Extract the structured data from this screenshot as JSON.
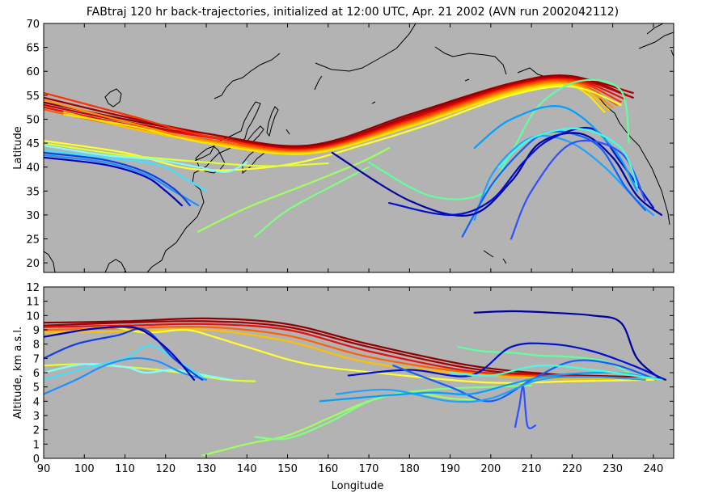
{
  "chart_data": [
    {
      "type": "line",
      "title": "FABtraj 120 hr back-trajectories, initialized at 12:00 UTC, Apr. 21 2002 (AVN run 2002042112)",
      "xlabel": "",
      "ylabel": "Latitude",
      "xlim": [
        90,
        245
      ],
      "ylim": [
        18,
        70
      ],
      "yticks": [
        "20",
        "25",
        "30",
        "35",
        "40",
        "45",
        "50",
        "55",
        "60",
        "65",
        "70"
      ],
      "background": "#b3b3b3",
      "series": [
        {
          "color": "#8b0000",
          "x": [
            90,
            110,
            130,
            155,
            180,
            205,
            220,
            235
          ],
          "y": [
            53.5,
            50,
            47,
            44.5,
            51,
            57.5,
            59,
            54.5
          ]
        },
        {
          "color": "#a00000",
          "x": [
            90,
            110,
            130,
            155,
            180,
            205,
            220,
            235
          ],
          "y": [
            54.5,
            50.5,
            47,
            44.2,
            50.6,
            57.4,
            58.8,
            55.5
          ]
        },
        {
          "color": "#c80000",
          "x": [
            90,
            110,
            130,
            155,
            180,
            205,
            220,
            234
          ],
          "y": [
            53,
            49.5,
            46.5,
            44,
            50.2,
            57.1,
            58.5,
            54.8
          ]
        },
        {
          "color": "#e51010",
          "x": [
            90,
            110,
            130,
            155,
            180,
            205,
            220,
            233
          ],
          "y": [
            52.5,
            49,
            46.3,
            43.8,
            49.9,
            56.8,
            58.3,
            54.2
          ]
        },
        {
          "color": "#ff3000",
          "x": [
            90,
            110,
            130,
            155,
            180,
            205,
            220,
            232
          ],
          "y": [
            55.5,
            51,
            46.5,
            43.6,
            49.6,
            56.6,
            58.1,
            53.6
          ]
        },
        {
          "color": "#ff6000",
          "x": [
            90,
            110,
            130,
            155,
            180,
            205,
            220,
            231
          ],
          "y": [
            52,
            48.5,
            45.8,
            43.4,
            49.3,
            56.3,
            57.8,
            53
          ]
        },
        {
          "color": "#ff9000",
          "x": [
            90,
            110,
            130,
            155,
            180,
            205,
            220,
            230
          ],
          "y": [
            54,
            49.5,
            45.5,
            43.2,
            49,
            56,
            57.5,
            52.5
          ]
        },
        {
          "color": "#ffc000",
          "x": [
            95,
            112,
            130,
            155,
            180,
            205,
            220,
            229
          ],
          "y": [
            51.5,
            48,
            45.2,
            43,
            48.7,
            55.7,
            57.2,
            52
          ]
        },
        {
          "color": "#ffe600",
          "x": [
            95,
            112,
            130,
            155,
            180,
            205,
            220,
            228
          ],
          "y": [
            51,
            48.5,
            45,
            42.8,
            48.4,
            55.4,
            56.9,
            51.5
          ]
        },
        {
          "color": "#ffff30",
          "x": [
            90,
            110,
            128,
            150,
            170,
            185,
            205,
            220,
            232
          ],
          "y": [
            45.5,
            43,
            39.5,
            40.5,
            45,
            49,
            55,
            56.8,
            53
          ]
        },
        {
          "color": "#e0ff30",
          "x": [
            90,
            110,
            130,
            145,
            160
          ],
          "y": [
            45,
            42.5,
            41,
            40.2,
            40.8
          ]
        },
        {
          "color": "#a0ff60",
          "x": [
            128,
            140,
            155,
            168,
            175
          ],
          "y": [
            26.5,
            31.5,
            36.5,
            41,
            44
          ]
        },
        {
          "color": "#80ff80",
          "x": [
            142,
            150,
            162,
            170
          ],
          "y": [
            25.5,
            31,
            36.5,
            40
          ]
        },
        {
          "color": "#60ffa0",
          "x": [
            170,
            185,
            198,
            205,
            212,
            222,
            232,
            234
          ],
          "y": [
            41,
            34,
            34.5,
            43,
            53,
            58,
            56,
            45
          ]
        },
        {
          "color": "#80ffff",
          "x": [
            90,
            105,
            118,
            128,
            135,
            140
          ],
          "y": [
            44.5,
            42.5,
            41.5,
            40,
            39,
            41
          ]
        },
        {
          "color": "#40e0ff",
          "x": [
            90,
            105,
            118,
            125,
            130
          ],
          "y": [
            43.5,
            42,
            40.5,
            37.5,
            35
          ]
        },
        {
          "color": "#2090ff",
          "x": [
            90,
            105,
            115,
            122,
            128
          ],
          "y": [
            42.5,
            41,
            38.5,
            35,
            32
          ]
        },
        {
          "color": "#1040e0",
          "x": [
            90,
            105,
            115,
            122,
            126
          ],
          "y": [
            43,
            41.5,
            39,
            35.5,
            32
          ]
        },
        {
          "color": "#0000c0",
          "x": [
            90,
            105,
            115,
            120,
            124
          ],
          "y": [
            42,
            40.5,
            38,
            35,
            32
          ]
        },
        {
          "color": "#20a0ff",
          "x": [
            196,
            200,
            206,
            212,
            220,
            228,
            236,
            240
          ],
          "y": [
            29,
            38,
            44,
            46.5,
            45,
            40,
            33,
            30
          ]
        },
        {
          "color": "#1060ff",
          "x": [
            193,
            200,
            207,
            213,
            220,
            227,
            233,
            238
          ],
          "y": [
            25.5,
            36,
            43,
            47,
            47,
            44,
            36,
            31
          ]
        },
        {
          "color": "#0000a0",
          "x": [
            161,
            180,
            195,
            205,
            212,
            222,
            230,
            236,
            242
          ],
          "y": [
            43,
            33,
            30,
            37,
            45,
            47,
            42,
            34,
            30
          ]
        },
        {
          "color": "#0010d0",
          "x": [
            175,
            190,
            200,
            208,
            215,
            225,
            232,
            240
          ],
          "y": [
            32.5,
            30,
            33,
            41,
            46,
            48,
            41,
            31.5
          ]
        },
        {
          "color": "#00a0ff",
          "x": [
            196,
            205,
            218,
            230,
            236
          ],
          "y": [
            44,
            50,
            52.5,
            44,
            35
          ]
        },
        {
          "color": "#3050ff",
          "x": [
            205,
            210,
            220,
            232,
            238
          ],
          "y": [
            25,
            35,
            45,
            43,
            33
          ]
        },
        {
          "color": "#40ffe0",
          "x": [
            202,
            210,
            222,
            232,
            236
          ],
          "y": [
            40,
            46,
            48,
            44,
            36
          ]
        }
      ]
    },
    {
      "type": "line",
      "title": "",
      "xlabel": "Longitude",
      "ylabel": "Altitude, km a.s.l.",
      "xlim": [
        90,
        245
      ],
      "ylim": [
        0,
        12
      ],
      "xticks": [
        "90",
        "100",
        "110",
        "120",
        "130",
        "140",
        "150",
        "160",
        "170",
        "180",
        "190",
        "200",
        "210",
        "220",
        "230",
        "240"
      ],
      "yticks": [
        "0",
        "1",
        "2",
        "3",
        "4",
        "5",
        "6",
        "7",
        "8",
        "9",
        "10",
        "11",
        "12"
      ],
      "background": "#b3b3b3",
      "series": [
        {
          "color": "#8b0000",
          "x": [
            90,
            110,
            130,
            150,
            170,
            195,
            215,
            235,
            243
          ],
          "y": [
            9.5,
            9.6,
            9.8,
            9.4,
            8,
            6.5,
            5.9,
            5.7,
            5.5
          ]
        },
        {
          "color": "#a00000",
          "x": [
            90,
            110,
            130,
            150,
            170,
            195,
            215,
            235,
            243
          ],
          "y": [
            9.3,
            9.5,
            9.6,
            9.2,
            7.8,
            6.3,
            5.8,
            5.7,
            5.5
          ]
        },
        {
          "color": "#e51010",
          "x": [
            90,
            110,
            130,
            150,
            170,
            195,
            215,
            235,
            243
          ],
          "y": [
            9.2,
            9.3,
            9.4,
            9,
            7.5,
            6.1,
            5.8,
            5.6,
            5.5
          ]
        },
        {
          "color": "#ff6000",
          "x": [
            90,
            110,
            130,
            150,
            170,
            195,
            215,
            235,
            243
          ],
          "y": [
            9.0,
            9.1,
            9.2,
            8.6,
            7.1,
            6.0,
            5.7,
            5.6,
            5.5
          ]
        },
        {
          "color": "#ffc000",
          "x": [
            90,
            110,
            130,
            150,
            170,
            195,
            215,
            235,
            243
          ],
          "y": [
            8.8,
            8.9,
            9.0,
            8.2,
            6.7,
            5.9,
            5.6,
            5.6,
            5.5
          ]
        },
        {
          "color": "#ffff30",
          "x": [
            90,
            105,
            115,
            125,
            132,
            140,
            155,
            175,
            200,
            220,
            240
          ],
          "y": [
            8.5,
            9.2,
            8.8,
            9,
            8.5,
            7.8,
            6.6,
            5.9,
            5.3,
            5.4,
            5.5
          ]
        },
        {
          "color": "#e0ff30",
          "x": [
            90,
            100,
            110,
            118,
            126,
            135,
            142
          ],
          "y": [
            6.5,
            6.6,
            6.4,
            6.2,
            5.9,
            5.5,
            5.4
          ]
        },
        {
          "color": "#a0ff60",
          "x": [
            129,
            140,
            150,
            160,
            170,
            180,
            190,
            198
          ],
          "y": [
            0.2,
            1.0,
            1.6,
            2.8,
            4.0,
            4.6,
            4.2,
            4.1
          ]
        },
        {
          "color": "#80ff80",
          "x": [
            142,
            150,
            160,
            172,
            185,
            200,
            210
          ],
          "y": [
            1.5,
            1.4,
            2.5,
            4.2,
            4.8,
            5.0,
            5.1
          ]
        },
        {
          "color": "#60ffa0",
          "x": [
            192,
            198,
            205,
            212,
            220,
            228,
            234
          ],
          "y": [
            7.8,
            7.5,
            7.4,
            7.2,
            7.1,
            6.8,
            6.0
          ]
        },
        {
          "color": "#80ffff",
          "x": [
            90,
            100,
            110,
            115,
            122,
            130,
            136
          ],
          "y": [
            6.0,
            6.6,
            6.4,
            6.0,
            6.2,
            5.8,
            5.5
          ]
        },
        {
          "color": "#40e0ff",
          "x": [
            90,
            100,
            110,
            116,
            122,
            130
          ],
          "y": [
            5.5,
            6.3,
            7.0,
            7.9,
            7.0,
            5.5
          ]
        },
        {
          "color": "#2090ff",
          "x": [
            90,
            98,
            105,
            112,
            118,
            124,
            130
          ],
          "y": [
            4.5,
            5.5,
            6.5,
            7.0,
            6.8,
            6.0,
            5.5
          ]
        },
        {
          "color": "#1040e0",
          "x": [
            90,
            98,
            108,
            115,
            122,
            129
          ],
          "y": [
            7.0,
            8.0,
            8.6,
            9.0,
            7.0,
            5.5
          ]
        },
        {
          "color": "#0000c0",
          "x": [
            90,
            100,
            108,
            114,
            121,
            127
          ],
          "y": [
            8.5,
            9.0,
            9.2,
            9.0,
            7.5,
            5.5
          ]
        },
        {
          "color": "#0000a0",
          "x": [
            196,
            205,
            215,
            225,
            232,
            236,
            242
          ],
          "y": [
            10.2,
            10.3,
            10.2,
            10.0,
            9.5,
            7.0,
            5.5
          ]
        },
        {
          "color": "#0010d0",
          "x": [
            165,
            180,
            195,
            205,
            215,
            225,
            235,
            243
          ],
          "y": [
            5.8,
            6.2,
            5.8,
            7.8,
            8.0,
            7.5,
            6.5,
            5.5
          ]
        },
        {
          "color": "#1060ff",
          "x": [
            176,
            190,
            200,
            210,
            220,
            230,
            240
          ],
          "y": [
            6.5,
            5.0,
            4.0,
            5.5,
            6.8,
            6.6,
            5.6
          ]
        },
        {
          "color": "#20a0ff",
          "x": [
            162,
            175,
            190,
            200,
            212,
            225,
            238
          ],
          "y": [
            4.5,
            4.8,
            4.0,
            4.2,
            5.5,
            5.7,
            5.5
          ]
        },
        {
          "color": "#00a0ff",
          "x": [
            158,
            170,
            185,
            195,
            205,
            215,
            230,
            240
          ],
          "y": [
            4.0,
            4.3,
            4.6,
            4.5,
            5.2,
            5.8,
            6.0,
            5.6
          ]
        },
        {
          "color": "#3050ff",
          "x": [
            206,
            207,
            208,
            209,
            211
          ],
          "y": [
            2.2,
            3.6,
            5.0,
            2.3,
            2.3
          ]
        },
        {
          "color": "#40ffe0",
          "x": [
            190,
            200,
            212,
            225,
            235,
            242
          ],
          "y": [
            6.0,
            5.8,
            6.5,
            6.2,
            5.8,
            5.5
          ]
        }
      ]
    }
  ]
}
